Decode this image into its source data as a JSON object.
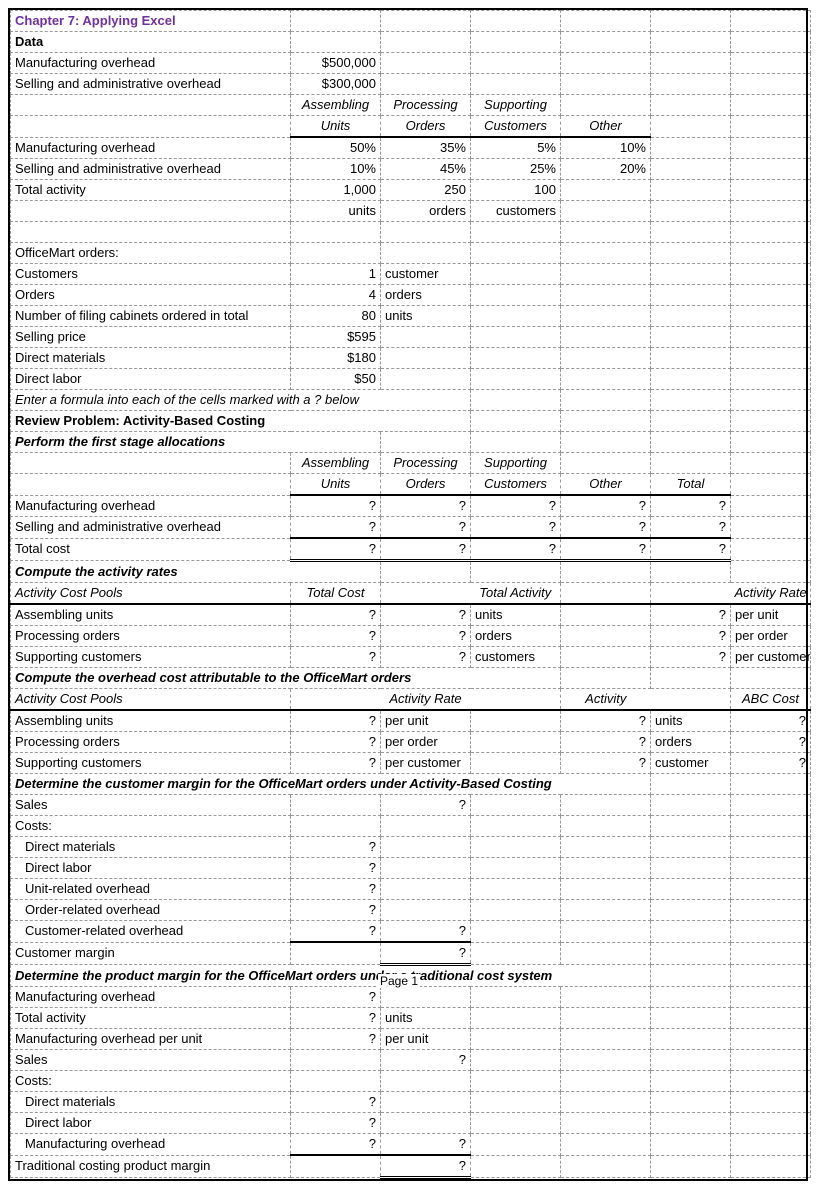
{
  "title": "Chapter 7: Applying Excel",
  "headings": {
    "data": "Data",
    "review": "Review Problem: Activity-Based Costing",
    "perform": "Perform the first stage allocations",
    "compute_rates": "Compute the activity rates",
    "compute_oh": "Compute the overhead cost attributable to the OfficeMart orders",
    "det_margin": "Determine the customer margin for the OfficeMart orders under Activity-Based Costing",
    "det_trad": "Determine the product margin for the OfficeMart orders under a traditional cost system",
    "enter_formula": "Enter a formula into each of the cells marked with a ? below"
  },
  "labels": {
    "mfg_oh": "Manufacturing overhead",
    "sa_oh": "Selling and administrative overhead",
    "total_activity_lbl": "Total activity",
    "officemart": "OfficeMart orders:",
    "customers": "Customers",
    "orders": "Orders",
    "num_cabinets": "Number of filing cabinets ordered in total",
    "selling_price": "Selling price",
    "direct_materials": "Direct materials",
    "direct_labor": "Direct labor",
    "total_cost": "Total cost",
    "activity_pools": "Activity Cost Pools",
    "assembling_units": "Assembling units",
    "processing_orders": "Processing orders",
    "supporting_customers": "Supporting customers",
    "sales": "Sales",
    "costs": "Costs:",
    "unit_oh": "Unit-related overhead",
    "order_oh": "Order-related overhead",
    "cust_oh": "Customer-related overhead",
    "cust_margin": "Customer margin",
    "mfg_oh_per_unit": "Manufacturing overhead per unit",
    "mfg_overhead": "Manufacturing overhead",
    "trad_margin": "Traditional costing product margin"
  },
  "col_heads": {
    "assembling": "Assembling",
    "units": "Units",
    "processing": "Processing",
    "orders_h": "Orders",
    "supporting": "Supporting",
    "customers_h": "Customers",
    "other": "Other",
    "total": "Total",
    "total_cost_h": "Total Cost",
    "total_activity_h": "Total Activity",
    "activity_rate_h": "Activity Rate",
    "activity_h": "Activity",
    "abc_cost_h": "ABC Cost"
  },
  "data": {
    "mfg_oh": "$500,000",
    "sa_oh": "$300,000",
    "pct_mfg": {
      "asm": "50%",
      "proc": "35%",
      "supp": "5%",
      "other": "10%"
    },
    "pct_sa": {
      "asm": "10%",
      "proc": "45%",
      "supp": "25%",
      "other": "20%"
    },
    "tot_act": {
      "asm": "1,000",
      "proc": "250",
      "supp": "100"
    },
    "tot_act_u": {
      "asm": "units",
      "proc": "orders",
      "supp": "customers"
    },
    "om": {
      "customers_v": "1",
      "customers_u": "customer",
      "orders_v": "4",
      "orders_u": "orders",
      "cabinets_v": "80",
      "cabinets_u": "units",
      "price": "$595",
      "dm": "$180",
      "dl": "$50"
    }
  },
  "q": "?",
  "units": {
    "per_unit": "per unit",
    "per_order": "per order",
    "per_customer": "per customer",
    "units_w": "units",
    "orders_w": "orders",
    "customers_w": "customers",
    "customer_w": "customer"
  },
  "page_label": "Page 1"
}
